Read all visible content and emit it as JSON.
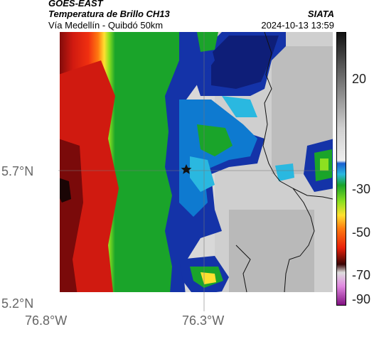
{
  "header": {
    "satellite": "GOES-EAST",
    "product": "Temperatura de Brillo CH13",
    "region": "Vía Medellín - Quibdó 50km",
    "agency": "SIATA",
    "datetime": "2024-10-13 13:59"
  },
  "map": {
    "lat_labels": [
      "5.7°N",
      "5.2°N"
    ],
    "lon_labels": [
      "76.8°W",
      "76.3°W"
    ],
    "marker_icon": "star-icon",
    "colors": {
      "cold_cloud_red": "#e8200a",
      "cloud_green": "#1aa42a",
      "cloud_blue": "#1433a8",
      "clear_gray": "#d8d8d8"
    }
  },
  "colorbar": {
    "tick_labels": [
      "20",
      "-30",
      "-50",
      "-70",
      "-90"
    ]
  }
}
